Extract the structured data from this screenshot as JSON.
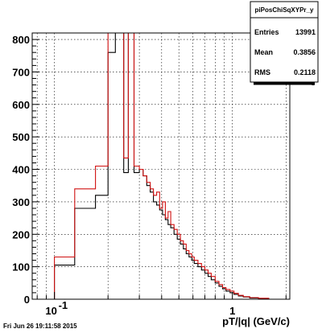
{
  "footer_text": "Fri Jun 26 19:11:58 2015",
  "stats_box": {
    "title": "piPosChiSqXYPr_y",
    "rows": [
      {
        "label": "Entries",
        "value": "13991"
      },
      {
        "label": "Mean",
        "value": "0.3856"
      },
      {
        "label": "RMS",
        "value": "0.2118"
      }
    ]
  },
  "colors": {
    "series_black": "#000000",
    "series_red": "#d01010",
    "grid": "#000000"
  },
  "chart_data": {
    "type": "line",
    "title": "",
    "xlabel": "pT/|q| (GeV/c)",
    "ylabel": "",
    "xscale": "log",
    "xlim": [
      0.075,
      2.1
    ],
    "ylim": [
      0,
      820
    ],
    "grid": true,
    "x_ticks": [
      {
        "value": 0.1,
        "label": "10^{-1}"
      },
      {
        "value": 1,
        "label": "1"
      }
    ],
    "y_ticks": [
      0,
      100,
      200,
      300,
      400,
      500,
      600,
      700,
      800
    ],
    "x_edges": [
      0.075,
      0.1,
      0.13,
      0.17,
      0.2,
      0.22,
      0.245,
      0.26,
      0.28,
      0.3,
      0.315,
      0.33,
      0.345,
      0.36,
      0.375,
      0.39,
      0.405,
      0.42,
      0.435,
      0.45,
      0.47,
      0.49,
      0.51,
      0.53,
      0.55,
      0.57,
      0.59,
      0.61,
      0.64,
      0.67,
      0.7,
      0.73,
      0.76,
      0.8,
      0.84,
      0.88,
      0.92,
      0.97,
      1.02,
      1.08,
      1.15,
      1.25,
      1.4,
      1.6,
      2.1
    ],
    "series": [
      {
        "color": "#000000",
        "values": [
          0,
          105,
          280,
          320,
          760,
          820,
          390,
          820,
          390,
          400,
          380,
          350,
          330,
          300,
          290,
          275,
          260,
          245,
          230,
          220,
          200,
          185,
          170,
          155,
          140,
          130,
          120,
          110,
          100,
          90,
          80,
          70,
          60,
          50,
          40,
          32,
          25,
          20,
          15,
          10,
          7,
          4,
          2,
          0
        ]
      },
      {
        "color": "#d01010",
        "values": [
          0,
          130,
          340,
          410,
          820,
          820,
          435,
          820,
          410,
          400,
          380,
          360,
          340,
          320,
          330,
          280,
          300,
          250,
          270,
          230,
          215,
          200,
          180,
          170,
          150,
          140,
          130,
          120,
          110,
          100,
          90,
          80,
          70,
          55,
          45,
          36,
          30,
          25,
          18,
          12,
          8,
          5,
          3,
          0
        ]
      }
    ]
  }
}
